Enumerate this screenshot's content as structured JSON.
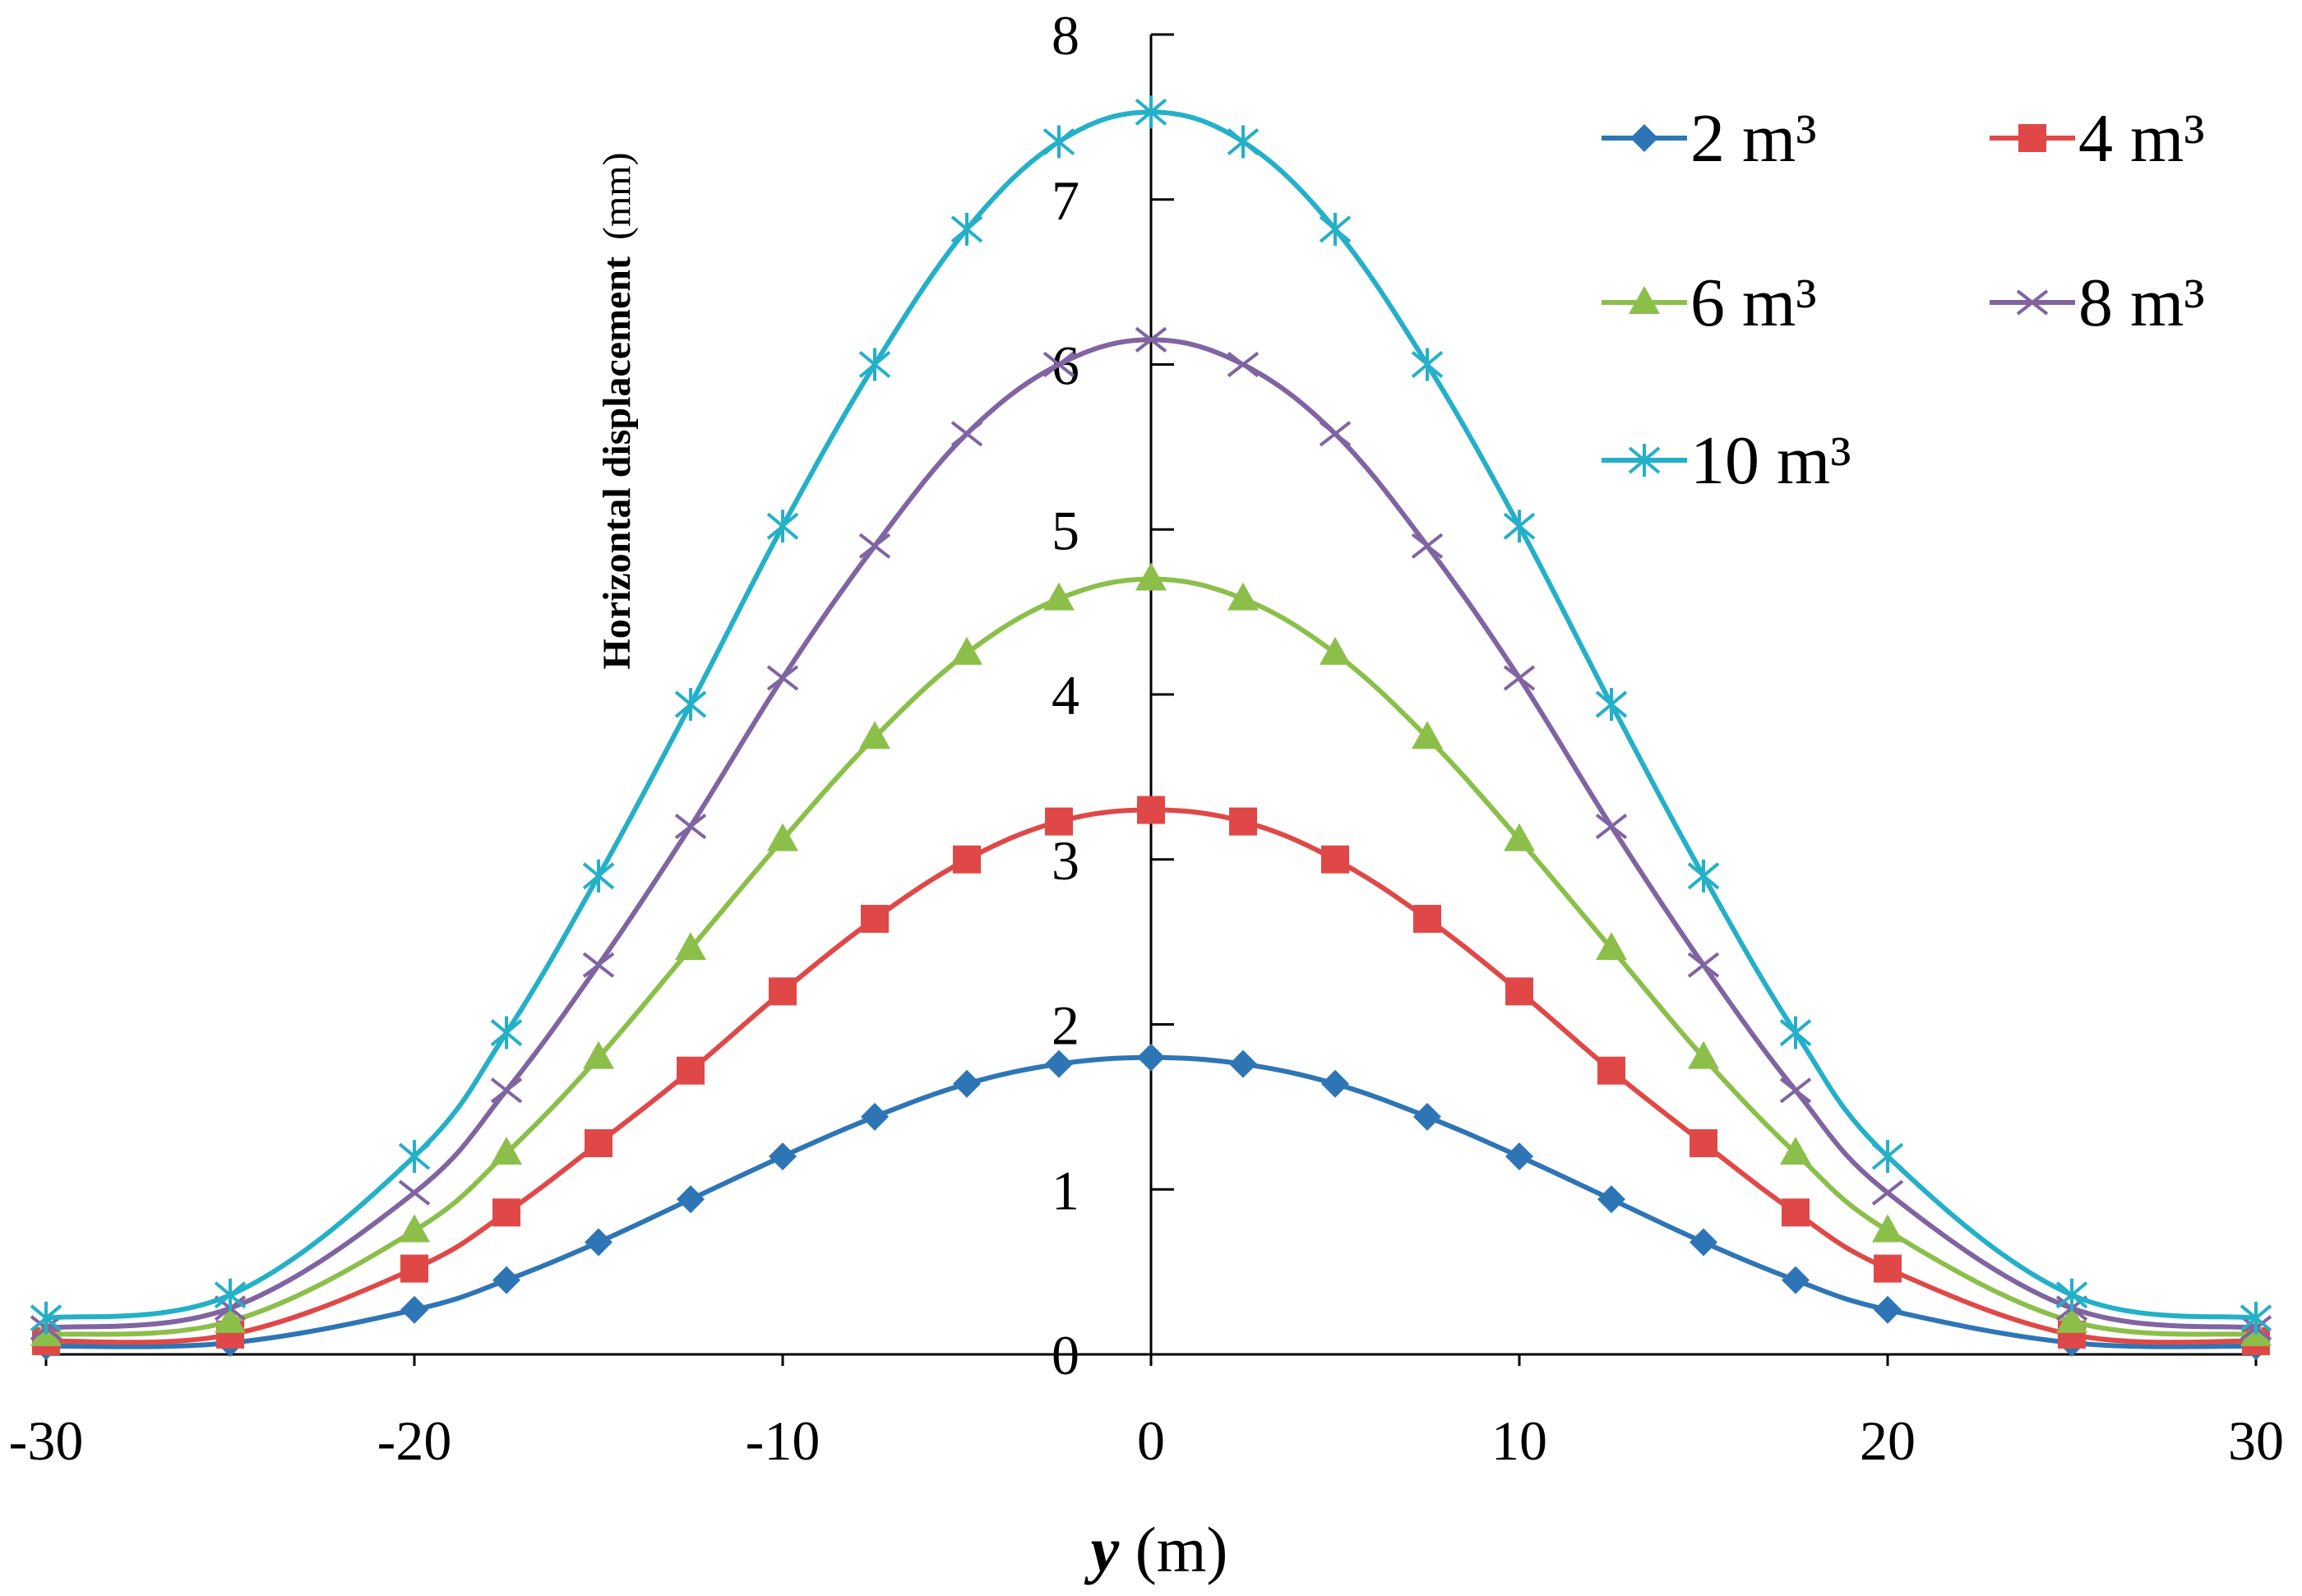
{
  "chart_data": {
    "type": "line",
    "title": "",
    "xlabel_var": "y",
    "xlabel_unit": " (m)",
    "ylabel_main": "Horizontal  displacement",
    "ylabel_unit": "(mm)",
    "xlim": [
      -30,
      30
    ],
    "ylim": [
      0,
      8
    ],
    "x_ticks": [
      "-30",
      "-20",
      "-10",
      "0",
      "10",
      "20",
      "30"
    ],
    "y_ticks": [
      "0",
      "1",
      "2",
      "3",
      "4",
      "5",
      "6",
      "7",
      "8"
    ],
    "grid": false,
    "legend_position": "top-right",
    "x": [
      -30,
      -25,
      -20,
      -17.5,
      -15,
      -12.5,
      -10,
      -7.5,
      -5,
      -2.5,
      0,
      2.5,
      5,
      7.5,
      10,
      12.5,
      15,
      17.5,
      20,
      25,
      30
    ],
    "series": [
      {
        "name": "2 m³",
        "color": "#2e75b6",
        "marker": "diamond",
        "values": [
          0.05,
          0.07,
          0.27,
          0.45,
          0.68,
          0.94,
          1.2,
          1.44,
          1.64,
          1.76,
          1.8,
          1.76,
          1.64,
          1.44,
          1.2,
          0.94,
          0.68,
          0.45,
          0.27,
          0.07,
          0.05
        ]
      },
      {
        "name": "4 m³",
        "color": "#e04848",
        "marker": "square",
        "values": [
          0.08,
          0.12,
          0.52,
          0.86,
          1.28,
          1.72,
          2.2,
          2.64,
          3.0,
          3.23,
          3.3,
          3.23,
          3.0,
          2.64,
          2.2,
          1.72,
          1.28,
          0.86,
          0.52,
          0.12,
          0.08
        ]
      },
      {
        "name": "6 m³",
        "color": "#8cbf4a",
        "marker": "triangle",
        "values": [
          0.12,
          0.2,
          0.75,
          1.22,
          1.8,
          2.46,
          3.12,
          3.74,
          4.25,
          4.58,
          4.7,
          4.58,
          4.25,
          3.74,
          3.12,
          2.46,
          1.8,
          1.22,
          0.75,
          0.2,
          0.12
        ]
      },
      {
        "name": "8 m³",
        "color": "#8064a2",
        "marker": "x",
        "values": [
          0.16,
          0.28,
          0.98,
          1.6,
          2.36,
          3.2,
          4.1,
          4.9,
          5.58,
          6.0,
          6.15,
          6.0,
          5.58,
          4.9,
          4.1,
          3.2,
          2.36,
          1.6,
          0.98,
          0.28,
          0.16
        ]
      },
      {
        "name": "10 m³",
        "color": "#23b0c8",
        "marker": "star",
        "values": [
          0.22,
          0.36,
          1.2,
          1.95,
          2.9,
          3.94,
          5.02,
          6.0,
          6.82,
          7.35,
          7.53,
          7.35,
          6.82,
          6.0,
          5.02,
          3.94,
          2.9,
          1.95,
          1.2,
          0.36,
          0.22
        ]
      }
    ]
  }
}
